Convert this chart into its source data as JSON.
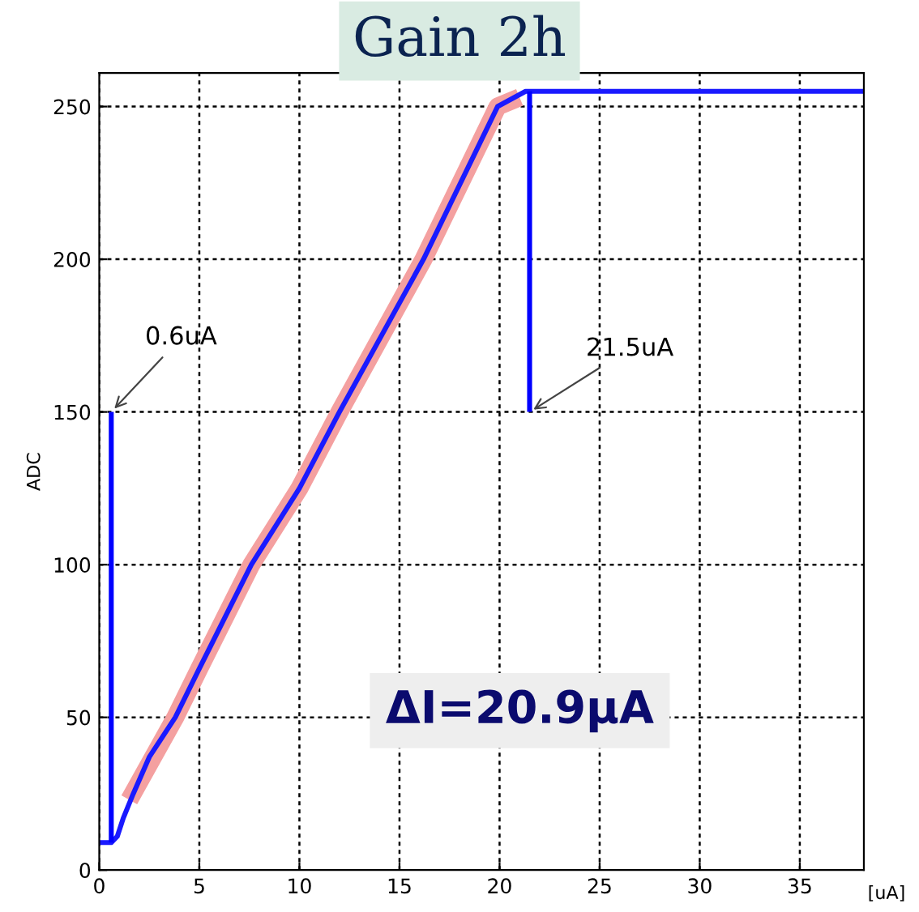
{
  "chart_data": {
    "type": "line",
    "title": "Gain 2h",
    "xlabel": "[uA]",
    "ylabel": "ADC",
    "xlim": [
      0,
      38.2
    ],
    "ylim": [
      0,
      261
    ],
    "xticks": [
      0,
      5,
      10,
      15,
      20,
      25,
      30,
      35
    ],
    "yticks": [
      0,
      50,
      100,
      150,
      200,
      250
    ],
    "grid": true,
    "line_style": "solid",
    "series": [
      {
        "color": "#f4a0a0",
        "x": [
          1.5,
          3.8,
          5,
          7.6,
          10,
          12,
          16.2,
          19.9,
          21
        ],
        "values": [
          23,
          50,
          66,
          100,
          125,
          150,
          200,
          250,
          253
        ]
      },
      {
        "color": "#1a1aff",
        "x": [
          0,
          0.6,
          0.9,
          1.2,
          1.7,
          2.5,
          3.8,
          5,
          7.6,
          10,
          12,
          16.2,
          19.9,
          21.3,
          38.2
        ],
        "values": [
          9,
          9,
          11,
          17,
          25,
          37,
          50,
          66,
          100,
          125,
          150,
          200,
          250,
          255,
          255
        ]
      },
      {
        "color": "#0000ff",
        "x": [
          0.6,
          0.6
        ],
        "values": [
          9,
          150
        ]
      },
      {
        "color": "#0000ff",
        "x": [
          21.5,
          21.5
        ],
        "values": [
          150,
          255
        ]
      }
    ],
    "annotations": [
      {
        "text": "0.6uA",
        "x": 0.6,
        "y": 150
      },
      {
        "text": "21.5uA",
        "x": 21.5,
        "y": 150
      },
      "ΔI=20.9μA"
    ]
  }
}
